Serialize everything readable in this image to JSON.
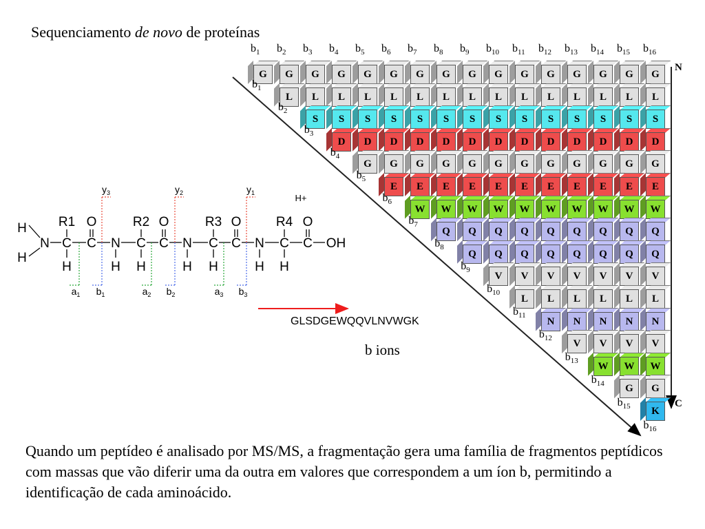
{
  "title": {
    "prefix": "Sequenciamento ",
    "italic": "de novo",
    "suffix": " de proteínas"
  },
  "sequence": "GLSDGEWQQVLNVWGK",
  "sequence_label": "GLSDGEWQQVLNVWGK",
  "b_ions_label": "b ions",
  "axis": {
    "n_label": "N",
    "c_label": "C"
  },
  "ion_prefix": "b",
  "residue_colors": {
    "G": "#e0e0e0",
    "L": "#e0e0e0",
    "V": "#e0e0e0",
    "S": "#55e8ee",
    "D": "#ee4c4c",
    "E": "#ee4c4c",
    "W": "#88e030",
    "Q": "#b8b8ee",
    "N": "#b8b8ee",
    "K": "#30b8ee"
  },
  "arrow_color": "#ee1c1c",
  "chem": {
    "nh_h": [
      "H",
      "H"
    ],
    "chain": [
      "N",
      "C",
      "C",
      "N",
      "C",
      "C",
      "N",
      "C",
      "C",
      "N",
      "C",
      "C",
      "OH"
    ],
    "r": [
      "R1",
      "R2",
      "R3",
      "R4"
    ],
    "o": [
      "O",
      "O",
      "O",
      "O"
    ],
    "h_below": [
      "H",
      "H",
      "H",
      "H",
      "H",
      "H",
      "H"
    ],
    "hplus": "H+",
    "y": [
      "y3",
      "y2",
      "y1"
    ],
    "ab": [
      "a1",
      "b1",
      "a2",
      "b2",
      "a3",
      "b3"
    ]
  },
  "caption": "Quando um peptídeo é analisado por MS/MS, a fragmentação gera uma família de fragmentos peptídicos com massas que vão diferir uma da outra em valores que correspondem a um íon b, permitindo a identificação de cada aminoácido."
}
